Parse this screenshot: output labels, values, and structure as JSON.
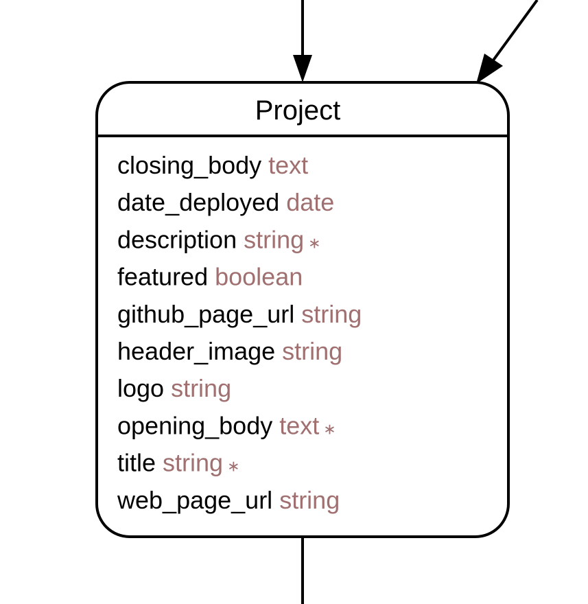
{
  "entity": {
    "name": "Project",
    "attributes": [
      {
        "name": "closing_body",
        "type": "text",
        "required": ""
      },
      {
        "name": "date_deployed",
        "type": "date",
        "required": ""
      },
      {
        "name": "description",
        "type": "string",
        "required": "∗"
      },
      {
        "name": "featured",
        "type": "boolean",
        "required": ""
      },
      {
        "name": "github_page_url",
        "type": "string",
        "required": ""
      },
      {
        "name": "header_image",
        "type": "string",
        "required": ""
      },
      {
        "name": "logo",
        "type": "string",
        "required": ""
      },
      {
        "name": "opening_body",
        "type": "text",
        "required": "∗"
      },
      {
        "name": "title",
        "type": "string",
        "required": "∗"
      },
      {
        "name": "web_page_url",
        "type": "string",
        "required": ""
      }
    ]
  },
  "colors": {
    "type_text": "#a07070",
    "stroke": "#000000"
  }
}
